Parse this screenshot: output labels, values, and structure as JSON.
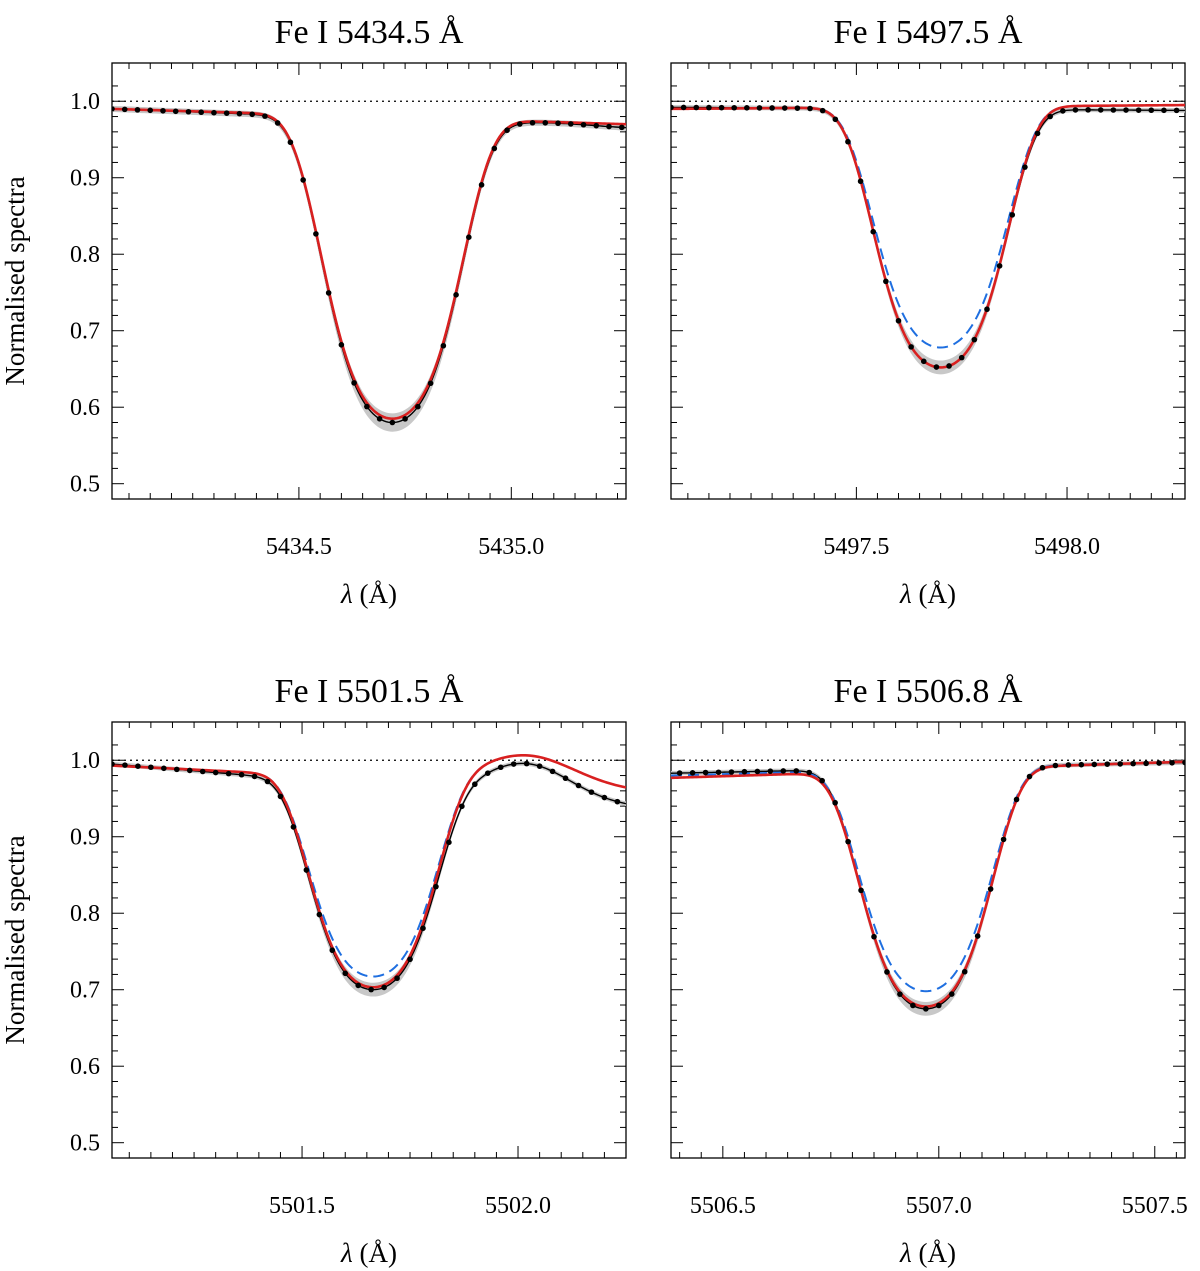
{
  "figure": {
    "ylabel": "Normalised spectra",
    "xlabel_symbol": "λ",
    "xlabel_unit": " (Å)",
    "ylim": [
      0.48,
      1.05
    ],
    "yticks": [
      0.5,
      0.6,
      0.7,
      0.8,
      0.9,
      1.0
    ],
    "ytick_labels": [
      "0.5",
      "0.6",
      "0.7",
      "0.8",
      "0.9",
      "1.0"
    ],
    "continuum_level": 1.0,
    "colors": {
      "observed": "#000000",
      "model_red": "#d92020",
      "model_blue": "#1f6fe0",
      "band": "#c8c8c8",
      "continuum": "#000000"
    }
  },
  "chart_data": [
    {
      "type": "line",
      "title": "Fe I  5434.5 Å",
      "xlabel": "λ (Å)",
      "ylabel": "Normalised spectra",
      "xlim": [
        5434.06,
        5435.27
      ],
      "ylim": [
        0.48,
        1.05
      ],
      "xticks": [
        5434.5,
        5435.0
      ],
      "xtick_labels": [
        "5434.5",
        "5435.0"
      ],
      "line": {
        "center": 5434.72,
        "depth": 0.41,
        "sigma": 0.145,
        "blue_width": 0.56
      },
      "observed_points": {
        "x_start": 5434.06,
        "step": 0.03,
        "count": 41
      },
      "series": [
        {
          "name": "observed",
          "style": "black-line-dots",
          "values_at_center": 0.58,
          "edge_values": [
            0.99,
            0.965
          ],
          "hump": {
            "x": 5435.1,
            "height": 0.003,
            "width": 0.09
          },
          "band_halfwidth": 0.004
        },
        {
          "name": "model_red",
          "style": "red-solid",
          "values_at_center": 0.585,
          "edge_values": [
            0.99,
            0.97
          ]
        }
      ]
    },
    {
      "type": "line",
      "title": "Fe I  5497.5 Å",
      "xlabel": "λ (Å)",
      "ylabel": "Normalised spectra",
      "xlim": [
        5497.06,
        5498.28
      ],
      "ylim": [
        0.48,
        1.05
      ],
      "xticks": [
        5497.5,
        5498.0
      ],
      "xtick_labels": [
        "5497.5",
        "5498.0"
      ],
      "line": {
        "center": 5497.7,
        "depth": 0.345,
        "sigma": 0.14,
        "blue_width": 0.5
      },
      "observed_points": {
        "x_start": 5497.06,
        "step": 0.03,
        "count": 42
      },
      "series": [
        {
          "name": "observed",
          "style": "black-line-dots",
          "values_at_center": 0.652,
          "edge_values": [
            0.992,
            0.988
          ],
          "band_halfwidth": 0.003
        },
        {
          "name": "model_red",
          "style": "red-solid",
          "values_at_center": 0.652,
          "edge_values": [
            0.99,
            0.995
          ]
        },
        {
          "name": "model_blue",
          "style": "blue-dashed",
          "values_at_center": 0.678,
          "edge_values": [
            0.99,
            0.995
          ]
        }
      ]
    },
    {
      "type": "line",
      "title": "Fe I  5501.5 Å",
      "xlabel": "λ (Å)",
      "ylabel": "Normalised spectra",
      "xlim": [
        5501.06,
        5502.25
      ],
      "ylim": [
        0.48,
        1.05
      ],
      "xticks": [
        5501.5,
        5502.0
      ],
      "xtick_labels": [
        "5501.5",
        "5502.0"
      ],
      "line": {
        "center": 5501.665,
        "depth": 0.3,
        "sigma": 0.13,
        "blue_width": 0.48
      },
      "observed_points": {
        "x_start": 5501.06,
        "step": 0.03,
        "count": 40
      },
      "series": [
        {
          "name": "observed",
          "style": "black-line-dots",
          "values_at_center": 0.7,
          "edge_values": [
            0.995,
            0.94
          ],
          "hump": {
            "x": 5502.02,
            "height": 0.045,
            "width": 0.1
          },
          "band_halfwidth": 0.003
        },
        {
          "name": "model_red",
          "style": "red-solid",
          "values_at_center": 0.703,
          "edge_values": [
            0.993,
            0.96
          ],
          "hump": {
            "x": 5502.02,
            "height": 0.04,
            "width": 0.11
          }
        },
        {
          "name": "model_blue",
          "style": "blue-dashed",
          "values_at_center": 0.717,
          "edge_values": [
            0.993,
            0.96
          ],
          "hump": {
            "x": 5502.02,
            "height": 0.04,
            "width": 0.11
          }
        }
      ]
    },
    {
      "type": "line",
      "title": "Fe I  5506.8 Å",
      "xlabel": "λ (Å)",
      "ylabel": "Normalised spectra",
      "xlim": [
        5506.38,
        5507.57
      ],
      "ylim": [
        0.48,
        1.05
      ],
      "xticks": [
        5506.5,
        5507.0,
        5507.5
      ],
      "xtick_labels": [
        "5506.5",
        "5507.0",
        "5507.5"
      ],
      "line": {
        "center": 5506.97,
        "depth": 0.315,
        "sigma": 0.135,
        "blue_width": 0.46
      },
      "observed_points": {
        "x_start": 5506.4,
        "step": 0.03,
        "count": 40
      },
      "series": [
        {
          "name": "observed",
          "style": "black-line-dots",
          "values_at_center": 0.675,
          "edge_values": [
            0.983,
            0.997
          ],
          "band_halfwidth": 0.003
        },
        {
          "name": "model_red",
          "style": "red-solid",
          "values_at_center": 0.678,
          "edge_values": [
            0.977,
            0.998
          ]
        },
        {
          "name": "model_blue",
          "style": "blue-dashed",
          "values_at_center": 0.698,
          "edge_values": [
            0.98,
            0.998
          ]
        }
      ]
    }
  ]
}
